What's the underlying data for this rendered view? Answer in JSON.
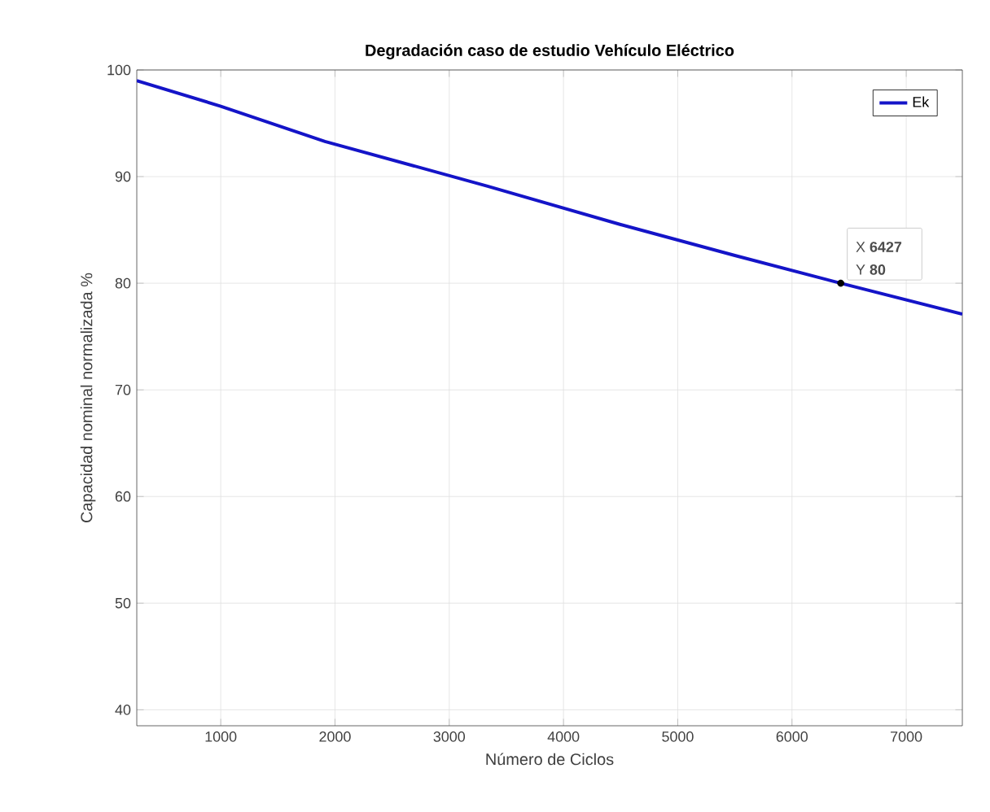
{
  "chart_data": {
    "type": "line",
    "title": "Degradación caso de estudio Vehículo Eléctrico",
    "xlabel": "Número de Ciclos",
    "ylabel": "Capacidad nominal normalizada %",
    "x": [
      265,
      1000,
      1912,
      3336,
      4500,
      5500,
      6427,
      7491
    ],
    "series": [
      {
        "name": "Ek",
        "color": "#1414c8",
        "values": [
          99.0,
          96.6,
          93.3,
          89.1,
          85.5,
          82.6,
          80,
          77.1
        ]
      }
    ],
    "xlim": [
      265,
      7491
    ],
    "ylim": [
      38.5,
      100
    ],
    "xticks": [
      1000,
      2000,
      3000,
      4000,
      5000,
      6000,
      7000
    ],
    "yticks": [
      40,
      50,
      60,
      70,
      80,
      90,
      100
    ],
    "grid": true,
    "legend": "top right",
    "marker": "none",
    "line_style": "solid",
    "annotations": [
      {
        "text": "X **6427**",
        "x": 6427,
        "y": 80
      },
      {
        "text": "Y **80**",
        "x": 6427,
        "y": 80
      }
    ]
  }
}
